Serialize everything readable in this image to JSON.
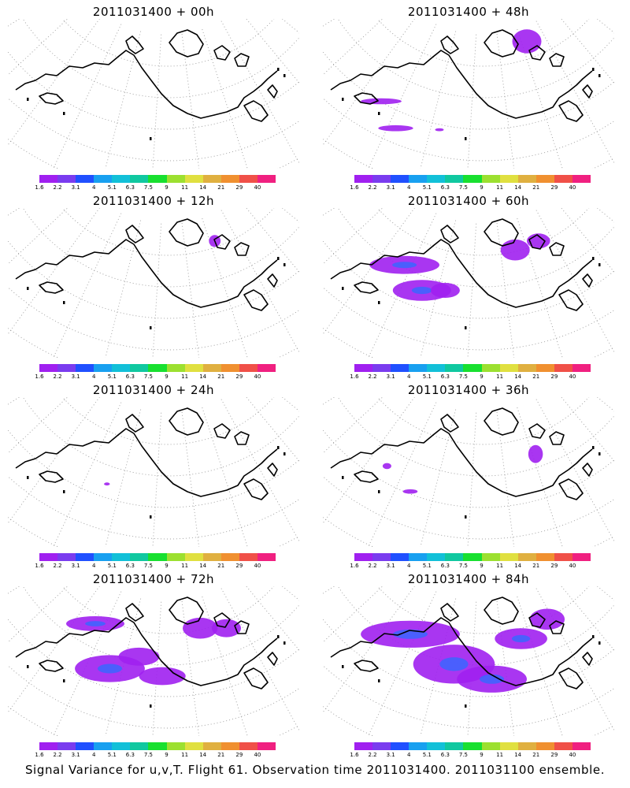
{
  "panels": [
    {
      "title": "2011031400 + 00h",
      "blobs": []
    },
    {
      "title": "2011031400 + 48h",
      "blobs": [
        [
          0.2,
          0.55,
          0.07,
          0.02
        ],
        [
          0.25,
          0.73,
          0.06,
          0.02
        ],
        [
          0.4,
          0.74,
          0.015,
          0.01
        ],
        [
          0.7,
          0.15,
          0.05,
          0.08
        ]
      ]
    },
    {
      "title": "2011031400 + 12h",
      "blobs": [
        [
          0.71,
          0.22,
          0.02,
          0.04
        ]
      ]
    },
    {
      "title": "2011031400 + 60h",
      "blobs": [
        [
          0.28,
          0.38,
          0.12,
          0.06
        ],
        [
          0.34,
          0.55,
          0.1,
          0.07
        ],
        [
          0.42,
          0.55,
          0.05,
          0.05
        ],
        [
          0.66,
          0.28,
          0.05,
          0.07
        ],
        [
          0.74,
          0.22,
          0.04,
          0.05
        ]
      ]
    },
    {
      "title": "2011031400 + 24h",
      "blobs": [
        [
          0.34,
          0.58,
          0.01,
          0.01
        ]
      ]
    },
    {
      "title": "2011031400 + 36h",
      "blobs": [
        [
          0.22,
          0.46,
          0.015,
          0.02
        ],
        [
          0.3,
          0.63,
          0.025,
          0.015
        ],
        [
          0.73,
          0.38,
          0.025,
          0.06
        ]
      ]
    },
    {
      "title": "2011031400 + 72h",
      "blobs": [
        [
          0.3,
          0.25,
          0.1,
          0.05
        ],
        [
          0.35,
          0.55,
          0.12,
          0.09
        ],
        [
          0.45,
          0.47,
          0.07,
          0.06
        ],
        [
          0.53,
          0.6,
          0.08,
          0.06
        ],
        [
          0.66,
          0.28,
          0.06,
          0.07
        ],
        [
          0.75,
          0.28,
          0.05,
          0.06
        ]
      ]
    },
    {
      "title": "2011031400 + 84h",
      "blobs": [
        [
          0.3,
          0.32,
          0.17,
          0.09
        ],
        [
          0.45,
          0.52,
          0.14,
          0.13
        ],
        [
          0.58,
          0.62,
          0.12,
          0.09
        ],
        [
          0.68,
          0.35,
          0.09,
          0.07
        ],
        [
          0.77,
          0.22,
          0.06,
          0.07
        ]
      ]
    }
  ],
  "colorbar": {
    "labels": [
      "1.6",
      "2.2",
      "3.1",
      "4",
      "5.1",
      "6.3",
      "7.5",
      "9",
      "11",
      "14",
      "21",
      "29",
      "40"
    ],
    "colors": [
      "#a020f0",
      "#7a3cef",
      "#2050ff",
      "#18a0f0",
      "#12c0d8",
      "#10c8a0",
      "#18e030",
      "#9ce030",
      "#e0e040",
      "#e0b040",
      "#f09030",
      "#f05048",
      "#f02080"
    ]
  },
  "caption": "Signal Variance for u,v,T. Flight 61. Observation time 2011031400. 2011031100 ensemble."
}
